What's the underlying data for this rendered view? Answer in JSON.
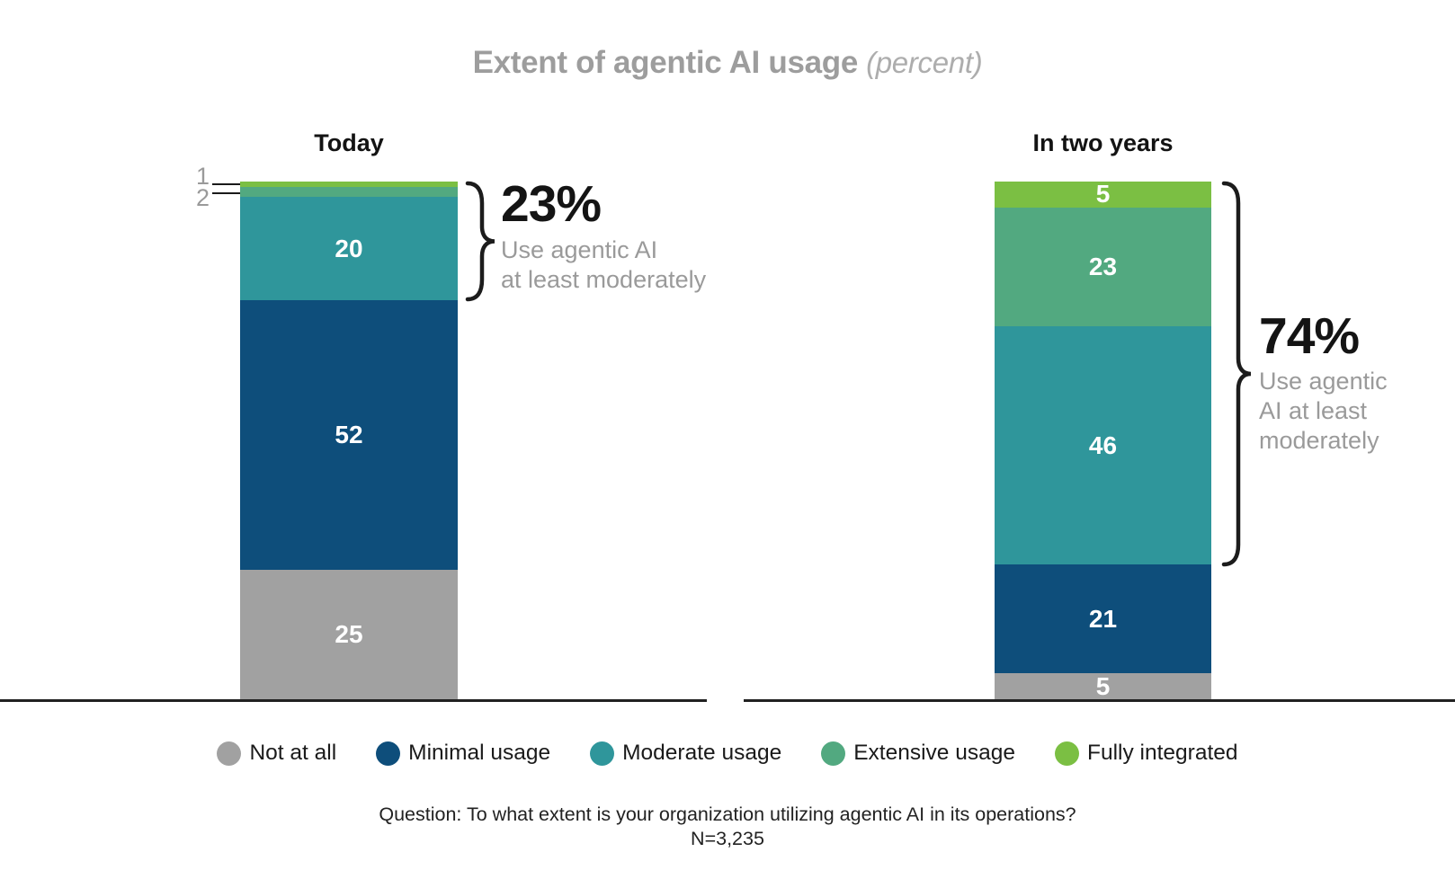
{
  "page_title": {
    "main": "Extent of agentic AI usage",
    "qualifier": "(percent)"
  },
  "colors": {
    "Not at all": "#a1a1a1",
    "Minimal usage": "#0e4e7b",
    "Moderate usage": "#2f969b",
    "Extensive usage": "#52a980",
    "Fully integrated": "#7bbf43",
    "heading_text": "#131313",
    "muted_text": "#9a9a9a",
    "title_gray": "#9d9d9d"
  },
  "chart_data": {
    "type": "bar",
    "subtype": "stacked-column",
    "unit": "percent",
    "title": "Extent of agentic AI usage (percent)",
    "ylim": [
      0,
      100
    ],
    "grid": false,
    "legend_position": "bottom",
    "stack_order_top_to_bottom": [
      "Fully integrated",
      "Extensive usage",
      "Moderate usage",
      "Minimal usage",
      "Not at all"
    ],
    "groups": [
      {
        "label": "Today",
        "segments": [
          {
            "category": "Fully integrated",
            "value": 1,
            "bar_label": ""
          },
          {
            "category": "Extensive usage",
            "value": 2,
            "bar_label": ""
          },
          {
            "category": "Moderate usage",
            "value": 20,
            "bar_label": "20"
          },
          {
            "category": "Minimal usage",
            "value": 52,
            "bar_label": "52"
          },
          {
            "category": "Not at all",
            "value": 25,
            "bar_label": "25"
          }
        ],
        "callouts": [
          {
            "label": "1",
            "category": "Fully integrated"
          },
          {
            "label": "2",
            "category": "Extensive usage"
          }
        ],
        "bracket": {
          "percent": "23%",
          "lines": [
            "Use agentic AI",
            "at least moderately"
          ],
          "covers_categories": [
            "Fully integrated",
            "Extensive usage",
            "Moderate usage"
          ],
          "covers_total": 23
        }
      },
      {
        "label": "In two years",
        "segments": [
          {
            "category": "Fully integrated",
            "value": 5,
            "bar_label": "5"
          },
          {
            "category": "Extensive usage",
            "value": 23,
            "bar_label": "23"
          },
          {
            "category": "Moderate usage",
            "value": 46,
            "bar_label": "46"
          },
          {
            "category": "Minimal usage",
            "value": 21,
            "bar_label": "21"
          },
          {
            "category": "Not at all",
            "value": 5,
            "bar_label": "5"
          }
        ],
        "callouts": [],
        "bracket": {
          "percent": "74%",
          "lines": [
            "Use agentic",
            "AI at least",
            "moderately"
          ],
          "covers_categories": [
            "Fully integrated",
            "Extensive usage",
            "Moderate usage"
          ],
          "covers_total": 74
        }
      }
    ],
    "legend": [
      "Not at all",
      "Minimal usage",
      "Moderate usage",
      "Extensive usage",
      "Fully integrated"
    ]
  },
  "footer": {
    "question": "Question: To what extent is your organization utilizing agentic AI in its operations?",
    "sample_size": "N=3,235"
  }
}
